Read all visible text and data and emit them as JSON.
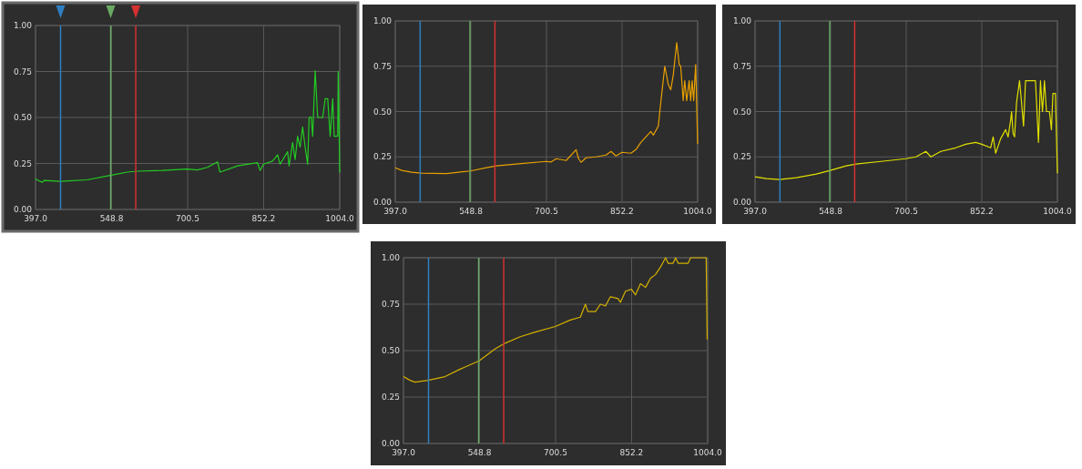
{
  "chart_data": [
    {
      "type": "line",
      "xlim": [
        397,
        1004
      ],
      "xticks": [
        {
          "value": 397,
          "label": "397.0"
        },
        {
          "value": 548.8,
          "label": "548.8"
        },
        {
          "value": 700.5,
          "label": "700.5"
        },
        {
          "value": 852.2,
          "label": "852.2"
        },
        {
          "value": 1004,
          "label": "1004.0"
        }
      ],
      "ylim": [
        0,
        1
      ],
      "yticks": [
        {
          "value": 0,
          "label": "0.00"
        },
        {
          "value": 0.25,
          "label": "0.25"
        },
        {
          "value": 0.5,
          "label": "0.50"
        },
        {
          "value": 0.75,
          "label": "0.75"
        },
        {
          "value": 1,
          "label": "1.00"
        }
      ],
      "grid": true,
      "series": [
        {
          "color": "#22cc22",
          "x": [
            397,
            410,
            415,
            446,
            500,
            548,
            580,
            600,
            650,
            700,
            720,
            740,
            760,
            765,
            800,
            840,
            845,
            852,
            870,
            880,
            885,
            900,
            903,
            910,
            915,
            920,
            925,
            930,
            935,
            940,
            943,
            947,
            950,
            955,
            960,
            970,
            975,
            980,
            985,
            990,
            993,
            997,
            1000,
            1001,
            1004
          ],
          "values": [
            0.166,
            0.147,
            0.158,
            0.153,
            0.161,
            0.186,
            0.203,
            0.208,
            0.212,
            0.22,
            0.215,
            0.229,
            0.259,
            0.203,
            0.237,
            0.254,
            0.212,
            0.246,
            0.263,
            0.297,
            0.246,
            0.314,
            0.237,
            0.364,
            0.271,
            0.398,
            0.339,
            0.449,
            0.339,
            0.246,
            0.5,
            0.503,
            0.398,
            0.754,
            0.5,
            0.5,
            0.602,
            0.602,
            0.398,
            0.602,
            0.398,
            0.398,
            0.4,
            0.75,
            0.2
          ]
        }
      ],
      "ref_lines": [
        {
          "axis": "x",
          "value": 447,
          "color": "#2f7fc0"
        },
        {
          "axis": "x",
          "value": 547,
          "color": "#6aaa64"
        },
        {
          "axis": "x",
          "value": 597,
          "color": "#d63030"
        }
      ]
    },
    {
      "type": "line",
      "xlim": [
        397,
        1004
      ],
      "xticks": [
        {
          "value": 397,
          "label": "397.0"
        },
        {
          "value": 548.8,
          "label": "548.8"
        },
        {
          "value": 700.5,
          "label": "700.5"
        },
        {
          "value": 852.2,
          "label": "852.2"
        },
        {
          "value": 1004,
          "label": "1004.0"
        }
      ],
      "ylim": [
        0,
        1
      ],
      "yticks": [
        {
          "value": 0,
          "label": "0.00"
        },
        {
          "value": 0.25,
          "label": "0.25"
        },
        {
          "value": 0.5,
          "label": "0.50"
        },
        {
          "value": 0.75,
          "label": "0.75"
        },
        {
          "value": 1,
          "label": "1.00"
        }
      ],
      "grid": true,
      "series": [
        {
          "color": "#e8a000",
          "x": [
            397,
            410,
            430,
            450,
            500,
            548,
            580,
            600,
            650,
            700,
            710,
            720,
            740,
            760,
            765,
            770,
            780,
            800,
            820,
            830,
            840,
            852,
            870,
            880,
            890,
            900,
            910,
            915,
            925,
            930,
            938,
            945,
            950,
            955,
            962,
            967,
            970,
            975,
            978,
            982,
            987,
            990,
            993,
            996,
            1000,
            1004
          ],
          "values": [
            0.19,
            0.175,
            0.165,
            0.16,
            0.158,
            0.172,
            0.19,
            0.2,
            0.213,
            0.225,
            0.222,
            0.24,
            0.23,
            0.29,
            0.24,
            0.22,
            0.245,
            0.25,
            0.26,
            0.28,
            0.255,
            0.275,
            0.27,
            0.29,
            0.33,
            0.36,
            0.39,
            0.37,
            0.42,
            0.55,
            0.75,
            0.65,
            0.62,
            0.7,
            0.88,
            0.76,
            0.75,
            0.56,
            0.67,
            0.56,
            0.67,
            0.56,
            0.67,
            0.56,
            0.76,
            0.32
          ]
        }
      ],
      "ref_lines": [
        {
          "axis": "x",
          "value": 447,
          "color": "#2f7fc0"
        },
        {
          "axis": "x",
          "value": 547,
          "color": "#6aaa64"
        },
        {
          "axis": "x",
          "value": 597,
          "color": "#d63030"
        }
      ]
    },
    {
      "type": "line",
      "xlim": [
        397,
        1004
      ],
      "xticks": [
        {
          "value": 397,
          "label": "397.0"
        },
        {
          "value": 548.8,
          "label": "548.8"
        },
        {
          "value": 700.5,
          "label": "700.5"
        },
        {
          "value": 852.2,
          "label": "852.2"
        },
        {
          "value": 1004,
          "label": "1004.0"
        }
      ],
      "ylim": [
        0,
        1
      ],
      "yticks": [
        {
          "value": 0,
          "label": "0.00"
        },
        {
          "value": 0.25,
          "label": "0.25"
        },
        {
          "value": 0.5,
          "label": "0.50"
        },
        {
          "value": 0.75,
          "label": "0.75"
        },
        {
          "value": 1,
          "label": "1.00"
        }
      ],
      "grid": true,
      "series": [
        {
          "color": "#e0e000",
          "x": [
            397,
            420,
            446,
            480,
            520,
            548,
            580,
            600,
            650,
            700,
            720,
            740,
            750,
            770,
            800,
            820,
            840,
            852,
            870,
            875,
            880,
            890,
            900,
            905,
            910,
            912,
            915,
            918,
            922,
            928,
            932,
            936,
            940,
            960,
            966,
            970,
            974,
            978,
            982,
            988,
            992,
            995,
            1000,
            1004
          ],
          "values": [
            0.14,
            0.13,
            0.125,
            0.135,
            0.155,
            0.175,
            0.2,
            0.21,
            0.225,
            0.24,
            0.25,
            0.28,
            0.25,
            0.28,
            0.3,
            0.32,
            0.33,
            0.32,
            0.3,
            0.36,
            0.27,
            0.35,
            0.4,
            0.36,
            0.45,
            0.5,
            0.38,
            0.36,
            0.55,
            0.67,
            0.55,
            0.42,
            0.67,
            0.67,
            0.33,
            0.67,
            0.5,
            0.67,
            0.5,
            0.5,
            0.4,
            0.6,
            0.6,
            0.16
          ]
        }
      ],
      "ref_lines": [
        {
          "axis": "x",
          "value": 447,
          "color": "#2f7fc0"
        },
        {
          "axis": "x",
          "value": 547,
          "color": "#6aaa64"
        },
        {
          "axis": "x",
          "value": 597,
          "color": "#d63030"
        }
      ]
    },
    {
      "type": "line",
      "xlim": [
        397,
        1004
      ],
      "xticks": [
        {
          "value": 397,
          "label": "397.0"
        },
        {
          "value": 548.8,
          "label": "548.8"
        },
        {
          "value": 700.5,
          "label": "700.5"
        },
        {
          "value": 852.2,
          "label": "852.2"
        },
        {
          "value": 1004,
          "label": "1004.0"
        }
      ],
      "ylim": [
        0,
        1
      ],
      "yticks": [
        {
          "value": 0,
          "label": "0.00"
        },
        {
          "value": 0.25,
          "label": "0.25"
        },
        {
          "value": 0.5,
          "label": "0.50"
        },
        {
          "value": 0.75,
          "label": "0.75"
        },
        {
          "value": 1,
          "label": "1.00"
        }
      ],
      "grid": true,
      "series": [
        {
          "color": "#d4b000",
          "x": [
            397,
            410,
            420,
            446,
            480,
            510,
            548,
            580,
            600,
            630,
            660,
            700,
            730,
            750,
            760,
            765,
            780,
            790,
            800,
            810,
            825,
            830,
            840,
            852,
            860,
            870,
            880,
            890,
            900,
            910,
            920,
            925,
            935,
            940,
            945,
            965,
            970,
            990,
            1001,
            1003
          ],
          "values": [
            0.36,
            0.34,
            0.33,
            0.34,
            0.36,
            0.4,
            0.445,
            0.51,
            0.54,
            0.575,
            0.6,
            0.63,
            0.665,
            0.68,
            0.75,
            0.71,
            0.71,
            0.75,
            0.74,
            0.79,
            0.78,
            0.76,
            0.82,
            0.83,
            0.8,
            0.86,
            0.84,
            0.89,
            0.91,
            0.95,
            1.0,
            0.97,
            0.97,
            1.0,
            0.97,
            0.97,
            1.0,
            1.0,
            1.0,
            0.56
          ]
        }
      ],
      "ref_lines": [
        {
          "axis": "x",
          "value": 447,
          "color": "#2f7fc0"
        },
        {
          "axis": "x",
          "value": 547,
          "color": "#6aaa64"
        },
        {
          "axis": "x",
          "value": 597,
          "color": "#d63030"
        }
      ]
    }
  ]
}
